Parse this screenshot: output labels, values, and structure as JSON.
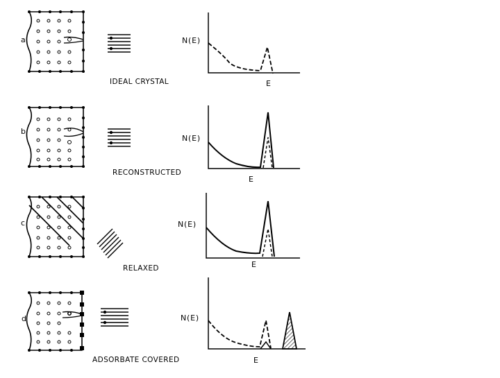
{
  "panels": [
    {
      "letter": "a",
      "caption": "IDEAL  CRYSTAL",
      "ylabel": "N(E)",
      "xlabel": "E"
    },
    {
      "letter": "b",
      "caption": "RECONSTRUCTED",
      "ylabel": "N(E)",
      "xlabel": "E"
    },
    {
      "letter": "c",
      "caption": "RELAXED",
      "ylabel": "N(E)",
      "xlabel": "E"
    },
    {
      "letter": "d",
      "caption": "ADSORBATE COVERED",
      "ylabel": "N(E)",
      "xlabel": "E"
    }
  ],
  "colors": {
    "ink": "#000000",
    "background": "#ffffff"
  }
}
